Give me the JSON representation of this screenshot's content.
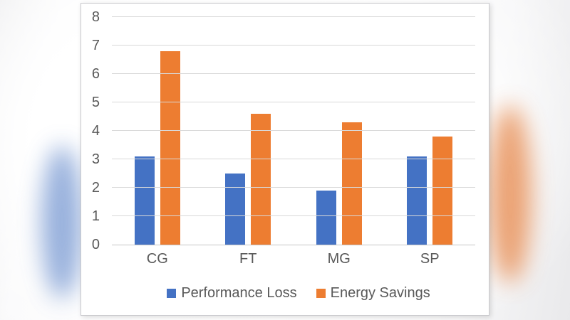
{
  "page": {
    "background_blobs": {
      "left_color": "#6f92cf",
      "right_color": "#e78a4e"
    },
    "card_background": "#ffffff"
  },
  "chart_data": {
    "type": "bar",
    "categories": [
      "CG",
      "FT",
      "MG",
      "SP"
    ],
    "series": [
      {
        "name": "Performance Loss",
        "color": "#4472C4",
        "values": [
          3.1,
          2.5,
          1.9,
          3.1
        ]
      },
      {
        "name": "Energy Savings",
        "color": "#ED7D31",
        "values": [
          6.8,
          4.6,
          4.3,
          3.8
        ]
      }
    ],
    "title": "",
    "xlabel": "",
    "ylabel": "",
    "ylim": [
      0,
      8
    ],
    "ytick_step": 1,
    "ytick_labels": [
      "0",
      "1",
      "2",
      "3",
      "4",
      "5",
      "6",
      "7",
      "8"
    ],
    "grid": true,
    "legend_position": "bottom",
    "axis_text_color": "#595959",
    "gridline_color": "#d9d9d9",
    "axis_line_color": "#c6c6c6"
  }
}
